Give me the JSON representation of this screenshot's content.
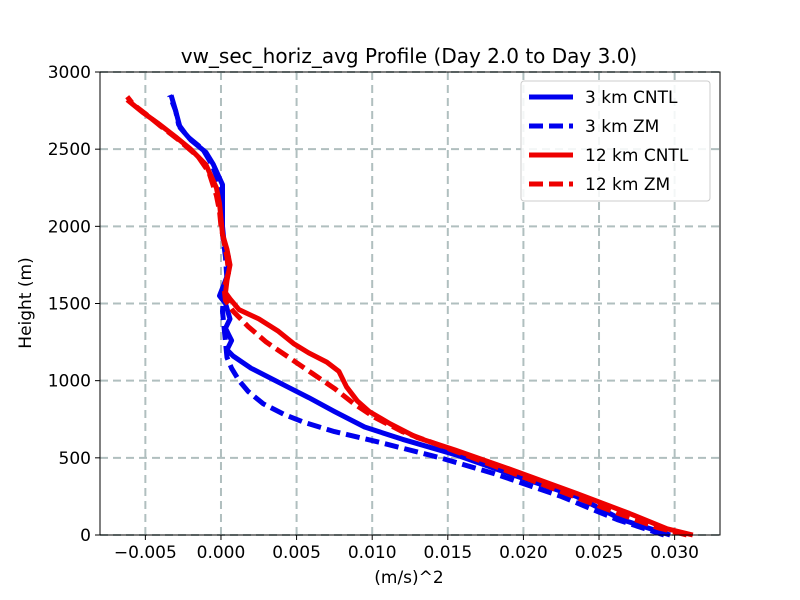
{
  "chart_data": {
    "type": "line",
    "title": "vw_sec_horiz_avg Profile (Day 2.0 to Day 3.0)",
    "xlabel": "(m/s)^2",
    "ylabel": "Height (m)",
    "xlim": [
      -0.008,
      0.033
    ],
    "ylim": [
      0,
      3000
    ],
    "x_ticks": [
      -0.005,
      0.0,
      0.005,
      0.01,
      0.015,
      0.02,
      0.025,
      0.03
    ],
    "x_tick_labels": [
      "−0.005",
      "0.000",
      "0.005",
      "0.010",
      "0.015",
      "0.020",
      "0.025",
      "0.030"
    ],
    "y_ticks": [
      0,
      500,
      1000,
      1500,
      2000,
      2500,
      3000
    ],
    "y_tick_labels": [
      "0",
      "500",
      "1000",
      "1500",
      "2000",
      "2500",
      "3000"
    ],
    "grid": true,
    "legend_position": "top-right",
    "series": [
      {
        "name": "3 km CNTL",
        "color": "#0000ee",
        "style": "solid",
        "points": [
          [
            0.0297,
            0
          ],
          [
            0.0265,
            100
          ],
          [
            0.0235,
            250
          ],
          [
            0.019,
            400
          ],
          [
            0.0155,
            520
          ],
          [
            0.012,
            620
          ],
          [
            0.0095,
            700
          ],
          [
            0.0075,
            800
          ],
          [
            0.0058,
            890
          ],
          [
            0.0042,
            970
          ],
          [
            0.002,
            1080
          ],
          [
            0.0008,
            1160
          ],
          [
            0.0004,
            1200
          ],
          [
            0.0007,
            1260
          ],
          [
            0.0005,
            1300
          ],
          [
            0.0003,
            1340
          ],
          [
            0.0006,
            1400
          ],
          [
            0.0003,
            1500
          ],
          [
            -0.0001,
            1550
          ],
          [
            0.0001,
            1600
          ],
          [
            0.0005,
            1700
          ],
          [
            0.0005,
            1800
          ],
          [
            0.0002,
            1900
          ],
          [
            0.0001,
            2000
          ],
          [
            0.0001,
            2100
          ],
          [
            0.0001,
            2270
          ],
          [
            -0.0005,
            2400
          ],
          [
            -0.001,
            2480
          ],
          [
            -0.002,
            2560
          ],
          [
            -0.0027,
            2640
          ],
          [
            -0.003,
            2750
          ],
          [
            -0.0033,
            2850
          ]
        ]
      },
      {
        "name": "3 km ZM",
        "color": "#0000ee",
        "style": "dashed",
        "points": [
          [
            0.0293,
            0
          ],
          [
            0.0262,
            100
          ],
          [
            0.0225,
            250
          ],
          [
            0.018,
            400
          ],
          [
            0.0145,
            500
          ],
          [
            0.0105,
            600
          ],
          [
            0.0075,
            670
          ],
          [
            0.0055,
            730
          ],
          [
            0.0042,
            780
          ],
          [
            0.0028,
            850
          ],
          [
            0.0018,
            930
          ],
          [
            0.0012,
            1000
          ],
          [
            0.0007,
            1080
          ],
          [
            0.0004,
            1150
          ],
          [
            0.0003,
            1250
          ],
          [
            0.0002,
            1350
          ],
          [
            0.0001,
            1450
          ],
          [
            0.0002,
            1550
          ],
          [
            0.0004,
            1650
          ],
          [
            0.0003,
            1800
          ],
          [
            0.0001,
            1950
          ],
          [
            0.0001,
            2100
          ],
          [
            0.0,
            2250
          ],
          [
            -0.0006,
            2400
          ],
          [
            -0.0012,
            2500
          ],
          [
            -0.0022,
            2580
          ],
          [
            -0.0028,
            2660
          ],
          [
            -0.003,
            2750
          ],
          [
            -0.0034,
            2850
          ]
        ]
      },
      {
        "name": "12 km CNTL",
        "color": "#ee0000",
        "style": "solid",
        "points": [
          [
            0.0312,
            0
          ],
          [
            0.0295,
            40
          ],
          [
            0.027,
            140
          ],
          [
            0.0235,
            270
          ],
          [
            0.019,
            430
          ],
          [
            0.0155,
            550
          ],
          [
            0.013,
            630
          ],
          [
            0.0112,
            720
          ],
          [
            0.0098,
            800
          ],
          [
            0.009,
            870
          ],
          [
            0.0083,
            960
          ],
          [
            0.0078,
            1060
          ],
          [
            0.007,
            1120
          ],
          [
            0.0058,
            1180
          ],
          [
            0.0048,
            1240
          ],
          [
            0.0038,
            1320
          ],
          [
            0.0025,
            1400
          ],
          [
            0.0012,
            1460
          ],
          [
            0.0006,
            1530
          ],
          [
            0.0003,
            1570
          ],
          [
            0.0004,
            1650
          ],
          [
            0.0006,
            1750
          ],
          [
            0.0004,
            1850
          ],
          [
            0.0001,
            1950
          ],
          [
            0.0,
            2050
          ],
          [
            -0.0001,
            2150
          ],
          [
            -0.0003,
            2250
          ],
          [
            -0.001,
            2400
          ],
          [
            -0.002,
            2500
          ],
          [
            -0.003,
            2580
          ],
          [
            -0.0042,
            2670
          ],
          [
            -0.0052,
            2740
          ],
          [
            -0.0062,
            2820
          ]
        ]
      },
      {
        "name": "12 km ZM",
        "color": "#ee0000",
        "style": "dashed",
        "points": [
          [
            0.0308,
            0
          ],
          [
            0.0288,
            50
          ],
          [
            0.026,
            150
          ],
          [
            0.022,
            300
          ],
          [
            0.018,
            450
          ],
          [
            0.0145,
            580
          ],
          [
            0.012,
            670
          ],
          [
            0.0102,
            760
          ],
          [
            0.0088,
            850
          ],
          [
            0.0075,
            950
          ],
          [
            0.006,
            1050
          ],
          [
            0.0045,
            1150
          ],
          [
            0.003,
            1250
          ],
          [
            0.0018,
            1350
          ],
          [
            0.0008,
            1450
          ],
          [
            0.0003,
            1520
          ],
          [
            0.0002,
            1600
          ],
          [
            0.0005,
            1700
          ],
          [
            0.0004,
            1800
          ],
          [
            0.0002,
            1900
          ],
          [
            0.0,
            2000
          ],
          [
            -0.0001,
            2100
          ],
          [
            -0.0003,
            2200
          ],
          [
            -0.0008,
            2350
          ],
          [
            -0.0015,
            2450
          ],
          [
            -0.0028,
            2560
          ],
          [
            -0.004,
            2650
          ],
          [
            -0.005,
            2730
          ],
          [
            -0.0058,
            2790
          ],
          [
            -0.0062,
            2840
          ]
        ]
      }
    ]
  }
}
